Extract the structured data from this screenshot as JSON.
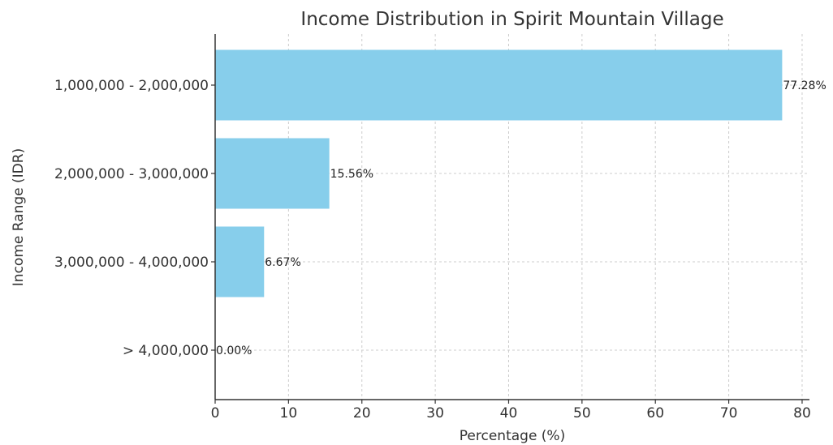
{
  "chart_data": {
    "type": "bar",
    "orientation": "horizontal",
    "title": "Income Distribution in Spirit Mountain Village",
    "xlabel": "Percentage (%)",
    "ylabel": "Income Range (IDR)",
    "categories": [
      "1,000,000 - 2,000,000",
      "2,000,000 - 3,000,000",
      "3,000,000 - 4,000,000",
      "> 4,000,000"
    ],
    "values": [
      77.28,
      15.56,
      6.67,
      0.0
    ],
    "data_labels": [
      "77.28%",
      "15.56%",
      "6.67%",
      "0.00%"
    ],
    "xlim": [
      0,
      81
    ],
    "xticks": [
      0,
      10,
      20,
      30,
      40,
      50,
      60,
      70,
      80
    ],
    "grid": true,
    "bar_color": "#87CEEB"
  }
}
